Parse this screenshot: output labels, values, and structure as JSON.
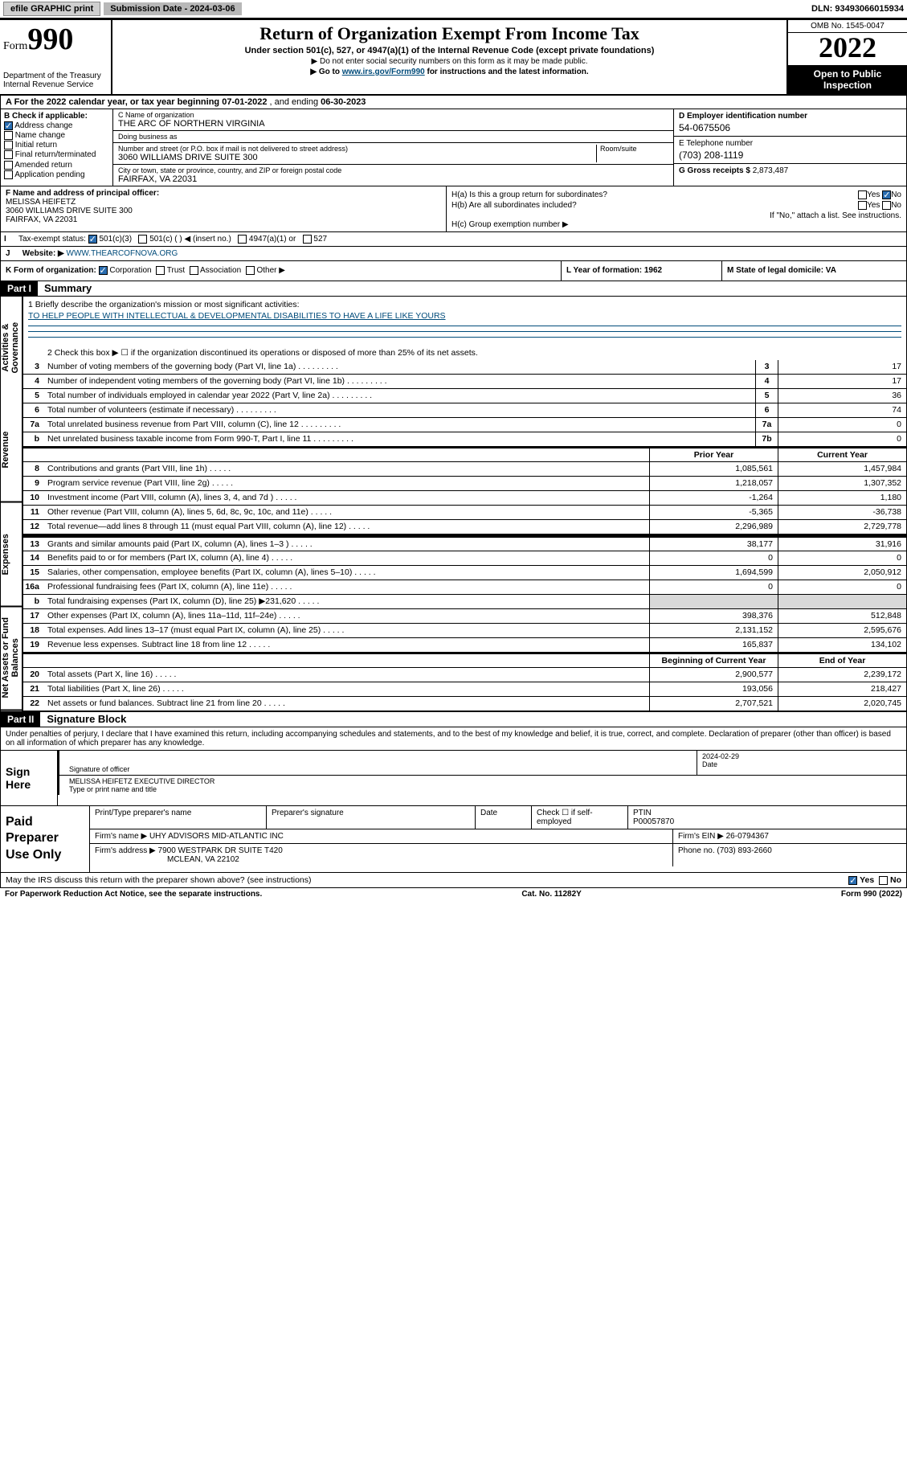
{
  "topbar": {
    "efile": "efile GRAPHIC print",
    "sub_label": "Submission Date - 2024-03-06",
    "dln": "DLN: 93493066015934"
  },
  "header": {
    "form_word": "Form",
    "form_num": "990",
    "dept": "Department of the Treasury\nInternal Revenue Service",
    "title": "Return of Organization Exempt From Income Tax",
    "sub1": "Under section 501(c), 527, or 4947(a)(1) of the Internal Revenue Code (except private foundations)",
    "sub2": "▶ Do not enter social security numbers on this form as it may be made public.",
    "sub3_pre": "▶ Go to ",
    "sub3_link": "www.irs.gov/Form990",
    "sub3_post": " for instructions and the latest information.",
    "omb": "OMB No. 1545-0047",
    "year": "2022",
    "open": "Open to Public Inspection"
  },
  "a": {
    "text_pre": "A For the 2022 calendar year, or tax year beginning ",
    "begin": "07-01-2022",
    "mid": " , and ending ",
    "end": "06-30-2023"
  },
  "b": {
    "label": "B Check if applicable:",
    "opts": [
      "Address change",
      "Name change",
      "Initial return",
      "Final return/terminated",
      "Amended return",
      "Application pending"
    ],
    "checked": [
      true,
      false,
      false,
      false,
      false,
      false
    ]
  },
  "c": {
    "name_label": "C Name of organization",
    "name": "THE ARC OF NORTHERN VIRGINIA",
    "dba_label": "Doing business as",
    "dba": "",
    "street_label": "Number and street (or P.O. box if mail is not delivered to street address)",
    "room_label": "Room/suite",
    "street": "3060 WILLIAMS DRIVE SUITE 300",
    "city_label": "City or town, state or province, country, and ZIP or foreign postal code",
    "city": "FAIRFAX, VA  22031"
  },
  "d": {
    "label": "D Employer identification number",
    "val": "54-0675506"
  },
  "e": {
    "label": "E Telephone number",
    "val": "(703) 208-1119"
  },
  "g": {
    "label": "G Gross receipts $",
    "val": "2,873,487"
  },
  "f": {
    "label": "F Name and address of principal officer:",
    "name": "MELISSA HEIFETZ",
    "addr1": "3060 WILLIAMS DRIVE SUITE 300",
    "addr2": "FAIRFAX, VA  22031"
  },
  "h": {
    "a": "H(a)  Is this a group return for subordinates?",
    "a_no": true,
    "b": "H(b)  Are all subordinates included?",
    "b_note": "If \"No,\" attach a list. See instructions.",
    "c": "H(c)  Group exemption number ▶"
  },
  "i": {
    "label": "Tax-exempt status:",
    "opts": [
      "501(c)(3)",
      "501(c) (  ) ◀ (insert no.)",
      "4947(a)(1) or",
      "527"
    ],
    "checked": 0
  },
  "j": {
    "label": "Website: ▶",
    "val": "WWW.THEARCOFNOVA.ORG"
  },
  "k": {
    "label": "K Form of organization:",
    "opts": [
      "Corporation",
      "Trust",
      "Association",
      "Other ▶"
    ],
    "checked": 0,
    "l": "L Year of formation: 1962",
    "m": "M State of legal domicile: VA"
  },
  "part1": {
    "hdr": "Part I",
    "title": "Summary"
  },
  "vtabs": [
    "Activities & Governance",
    "Revenue",
    "Expenses",
    "Net Assets or Fund Balances"
  ],
  "mission": {
    "q": "1  Briefly describe the organization's mission or most significant activities:",
    "a": "TO HELP PEOPLE WITH INTELLECTUAL & DEVELOPMENTAL DISABILITIES TO HAVE A LIFE LIKE YOURS"
  },
  "line2": "2  Check this box ▶ ☐  if the organization discontinued its operations or disposed of more than 25% of its net assets.",
  "gov_lines": [
    {
      "n": "3",
      "t": "Number of voting members of the governing body (Part VI, line 1a)",
      "box": "3",
      "v": "17"
    },
    {
      "n": "4",
      "t": "Number of independent voting members of the governing body (Part VI, line 1b)",
      "box": "4",
      "v": "17"
    },
    {
      "n": "5",
      "t": "Total number of individuals employed in calendar year 2022 (Part V, line 2a)",
      "box": "5",
      "v": "36"
    },
    {
      "n": "6",
      "t": "Total number of volunteers (estimate if necessary)",
      "box": "6",
      "v": "74"
    },
    {
      "n": "7a",
      "t": "Total unrelated business revenue from Part VIII, column (C), line 12",
      "box": "7a",
      "v": "0"
    },
    {
      "n": "b",
      "t": "Net unrelated business taxable income from Form 990-T, Part I, line 11",
      "box": "7b",
      "v": "0"
    }
  ],
  "col_hdrs": {
    "prior": "Prior Year",
    "curr": "Current Year"
  },
  "rev_lines": [
    {
      "n": "8",
      "t": "Contributions and grants (Part VIII, line 1h)",
      "p": "1,085,561",
      "c": "1,457,984"
    },
    {
      "n": "9",
      "t": "Program service revenue (Part VIII, line 2g)",
      "p": "1,218,057",
      "c": "1,307,352"
    },
    {
      "n": "10",
      "t": "Investment income (Part VIII, column (A), lines 3, 4, and 7d )",
      "p": "-1,264",
      "c": "1,180"
    },
    {
      "n": "11",
      "t": "Other revenue (Part VIII, column (A), lines 5, 6d, 8c, 9c, 10c, and 11e)",
      "p": "-5,365",
      "c": "-36,738"
    },
    {
      "n": "12",
      "t": "Total revenue—add lines 8 through 11 (must equal Part VIII, column (A), line 12)",
      "p": "2,296,989",
      "c": "2,729,778"
    }
  ],
  "exp_lines": [
    {
      "n": "13",
      "t": "Grants and similar amounts paid (Part IX, column (A), lines 1–3 )",
      "p": "38,177",
      "c": "31,916"
    },
    {
      "n": "14",
      "t": "Benefits paid to or for members (Part IX, column (A), line 4)",
      "p": "0",
      "c": "0"
    },
    {
      "n": "15",
      "t": "Salaries, other compensation, employee benefits (Part IX, column (A), lines 5–10)",
      "p": "1,694,599",
      "c": "2,050,912"
    },
    {
      "n": "16a",
      "t": "Professional fundraising fees (Part IX, column (A), line 11e)",
      "p": "0",
      "c": "0"
    },
    {
      "n": "b",
      "t": "Total fundraising expenses (Part IX, column (D), line 25) ▶231,620",
      "p": "",
      "c": "",
      "grey": true
    },
    {
      "n": "17",
      "t": "Other expenses (Part IX, column (A), lines 11a–11d, 11f–24e)",
      "p": "398,376",
      "c": "512,848"
    },
    {
      "n": "18",
      "t": "Total expenses. Add lines 13–17 (must equal Part IX, column (A), line 25)",
      "p": "2,131,152",
      "c": "2,595,676"
    },
    {
      "n": "19",
      "t": "Revenue less expenses. Subtract line 18 from line 12",
      "p": "165,837",
      "c": "134,102"
    }
  ],
  "na_hdrs": {
    "beg": "Beginning of Current Year",
    "end": "End of Year"
  },
  "na_lines": [
    {
      "n": "20",
      "t": "Total assets (Part X, line 16)",
      "p": "2,900,577",
      "c": "2,239,172"
    },
    {
      "n": "21",
      "t": "Total liabilities (Part X, line 26)",
      "p": "193,056",
      "c": "218,427"
    },
    {
      "n": "22",
      "t": "Net assets or fund balances. Subtract line 21 from line 20",
      "p": "2,707,521",
      "c": "2,020,745"
    }
  ],
  "part2": {
    "hdr": "Part II",
    "title": "Signature Block"
  },
  "sig_decl": "Under penalties of perjury, I declare that I have examined this return, including accompanying schedules and statements, and to the best of my knowledge and belief, it is true, correct, and complete. Declaration of preparer (other than officer) is based on all information of which preparer has any knowledge.",
  "sign": {
    "here": "Sign Here",
    "sig_label": "Signature of officer",
    "date_label": "Date",
    "date": "2024-02-29",
    "name": "MELISSA HEIFETZ  EXECUTIVE DIRECTOR",
    "name_label": "Type or print name and title"
  },
  "prep": {
    "title": "Paid Preparer Use Only",
    "h1": "Print/Type preparer's name",
    "h2": "Preparer's signature",
    "h3": "Date",
    "h4_pre": "Check ☐ if self-employed",
    "h5": "PTIN",
    "ptin": "P00057870",
    "firm_name_l": "Firm's name    ▶",
    "firm_name": "UHY ADVISORS MID-ATLANTIC INC",
    "firm_ein_l": "Firm's EIN ▶",
    "firm_ein": "26-0794367",
    "firm_addr_l": "Firm's address ▶",
    "firm_addr1": "7900 WESTPARK DR SUITE T420",
    "firm_addr2": "MCLEAN, VA  22102",
    "phone_l": "Phone no.",
    "phone": "(703) 893-2660"
  },
  "bottom_q": "May the IRS discuss this return with the preparer shown above? (see instructions)",
  "bottom_yes": true,
  "footer": {
    "left": "For Paperwork Reduction Act Notice, see the separate instructions.",
    "mid": "Cat. No. 11282Y",
    "right": "Form 990 (2022)"
  }
}
